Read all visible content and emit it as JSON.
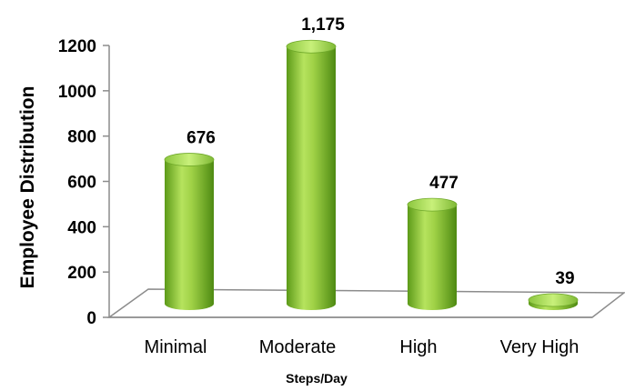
{
  "chart_data": {
    "type": "bar",
    "style": "3d-cylinder",
    "categories": [
      "Minimal",
      "Moderate",
      "High",
      "Very High"
    ],
    "values": [
      676,
      1175,
      477,
      39
    ],
    "data_labels": [
      "676",
      "1,175",
      "477",
      "39"
    ],
    "xlabel": "Steps/Day",
    "ylabel": "Employee Distribution",
    "ylim": [
      0,
      1200
    ],
    "yticks": [
      0,
      200,
      400,
      600,
      800,
      1000,
      1200
    ],
    "grid": false,
    "legend": "none",
    "bar_color": "#8cc63f",
    "bar_dark": "#4e8a12",
    "bar_light": "#c8f07a"
  }
}
